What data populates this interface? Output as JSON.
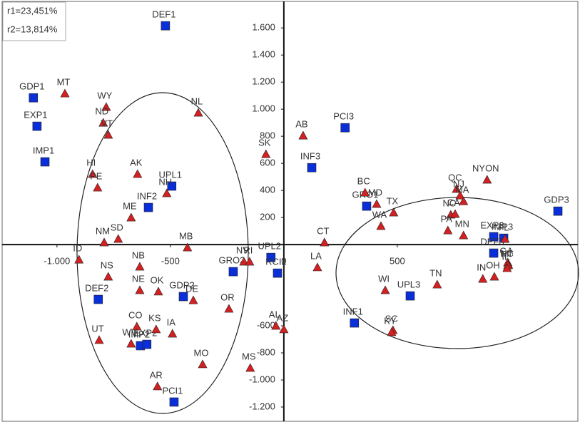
{
  "chart_data": {
    "type": "scatter",
    "annotations": [
      "r1=23,451%",
      "r2=13,814%"
    ],
    "xlim": [
      -1226,
      1296
    ],
    "ylim": [
      -1300,
      1780
    ],
    "xticks": [
      {
        "value": -1000,
        "label": "-1.000"
      },
      -500,
      0,
      500
    ],
    "yticks": [
      {
        "value": 1600,
        "label": "1.600"
      },
      {
        "value": 1400,
        "label": "1.400"
      },
      {
        "value": 1200,
        "label": "1.200"
      },
      {
        "value": 1000,
        "label": "1.000"
      },
      800,
      600,
      400,
      200,
      -600,
      -800,
      {
        "value": -1000,
        "label": "-1.000"
      },
      {
        "value": -1200,
        "label": "-1.200"
      }
    ],
    "series": [
      {
        "color": "#0a2ed8",
        "marker": "square",
        "labels": [
          "DEF1",
          "GDP1",
          "EXP1",
          "IMP1",
          "UPL1",
          "INF2",
          "GRO2",
          "UPL2",
          "RCI2",
          "GDP2",
          "DEF2",
          "IMP2",
          "EXP2",
          "PCI1",
          "PCI3",
          "INF3",
          "GRO1",
          "INF1",
          "UPL3",
          "EXP3",
          "IMP3",
          "DEF3",
          "GDP3"
        ],
        "x": [
          -522,
          -1104,
          -1088,
          -1053,
          -494,
          -597,
          -223,
          -57,
          -28,
          -443,
          -818,
          -632,
          -604,
          -484,
          270,
          123,
          365,
          311,
          557,
          925,
          969,
          925,
          1208
        ],
        "y": [
          1616,
          1084,
          874,
          611,
          432,
          274,
          -200,
          -95,
          -211,
          -384,
          -405,
          -747,
          -737,
          -1163,
          863,
          568,
          284,
          -579,
          -379,
          58,
          47,
          -63,
          247
        ]
      },
      {
        "color": "#d42020",
        "marker": "triangle",
        "labels": [
          "MT",
          "WY",
          "ND",
          "VT",
          "NL",
          "HI",
          "PE",
          "AK",
          "NH",
          "ME",
          "SD",
          "NM",
          "MB",
          "ID",
          "NB",
          "NS",
          "NE",
          "OK",
          "DE",
          "CO",
          "KS",
          "IA",
          "UT",
          "WV",
          "MO",
          "AR",
          "MS",
          "OR",
          "NV",
          "RI",
          "SK",
          "AB",
          "CT",
          "LA",
          "AL",
          "AZ",
          "BC",
          "MD",
          "TX",
          "WA",
          "QC",
          "NJ",
          "MA",
          "NYON",
          "NC",
          "CA",
          "PA",
          "MN",
          "IN",
          "OH",
          "GA",
          "NC",
          "MI",
          "IL",
          "FL",
          "TN",
          "WI",
          "SC",
          "KY"
        ],
        "x": [
          -965,
          -783,
          -796,
          -774,
          -377,
          -843,
          -821,
          -645,
          -516,
          -673,
          -730,
          -792,
          -425,
          -903,
          -635,
          -774,
          -635,
          -553,
          -399,
          -648,
          -563,
          -491,
          -814,
          -673,
          -358,
          -557,
          -148,
          -242,
          -176,
          -151,
          -79,
          85,
          179,
          148,
          -35,
          0,
          358,
          409,
          484,
          428,
          761,
          777,
          792,
          896,
          736,
          755,
          723,
          792,
          877,
          928,
          987,
          990,
          987,
          984,
          975,
          676,
          447,
          481,
          475
        ],
        "y": [
          1116,
          1016,
          900,
          811,
          974,
          521,
          421,
          521,
          379,
          200,
          42,
          16,
          -21,
          -111,
          -163,
          -237,
          -337,
          -347,
          -411,
          -605,
          -626,
          -658,
          -705,
          -732,
          -884,
          -1047,
          -911,
          -474,
          -126,
          -126,
          668,
          805,
          16,
          -168,
          -600,
          -626,
          384,
          300,
          237,
          137,
          411,
          363,
          320,
          479,
          221,
          226,
          105,
          68,
          -253,
          -237,
          -132,
          -150,
          -153,
          -174,
          42,
          -295,
          -337,
          -632,
          -647
        ]
      }
    ]
  }
}
